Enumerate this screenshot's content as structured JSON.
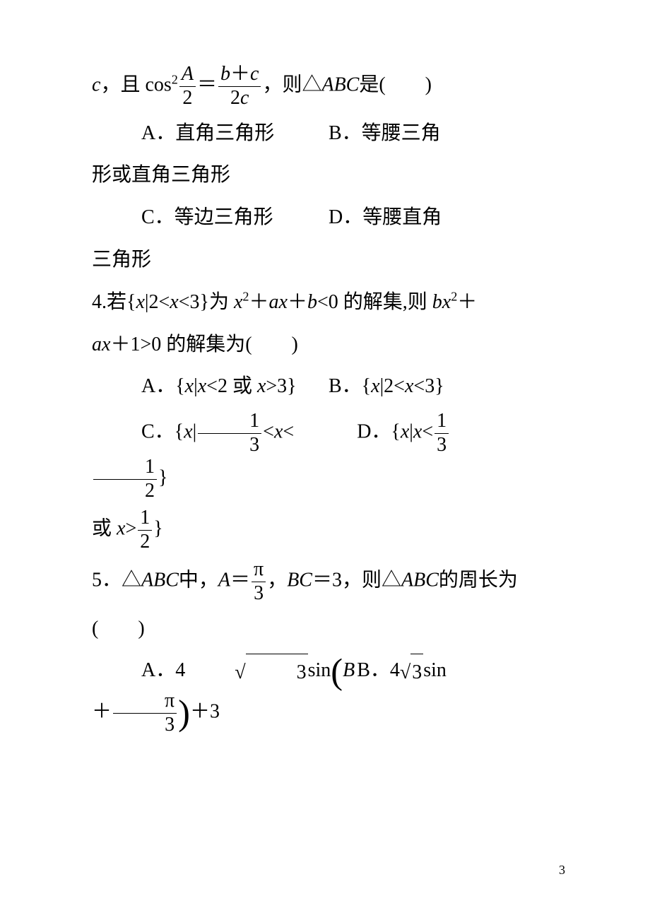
{
  "q3": {
    "stem_prefix": "c",
    "stem_mid1": "，且",
    "cos": "cos",
    "sq": "2",
    "A": "A",
    "two1": "2",
    "eq": "＝",
    "b": "b",
    "plus1": "＋",
    "c": "c",
    "two2": "2",
    "stem_mid2": "，则△",
    "ABC": "ABC",
    "stem_end": "是(　　)",
    "optA": "A．直角三角形",
    "optB": "B．等腰三角",
    "optB_cont": "形或直角三角形",
    "optC": "C．等边三角形",
    "optD": "D．等腰直角",
    "optD_cont": "三角形"
  },
  "q4": {
    "stem_p1": "4.若{",
    "x1": "x",
    "bar1": "|",
    "two_lt": "2<",
    "x2": "x",
    "lt3": "<3}为 ",
    "x3": "x",
    "sq1": "2",
    "plus1": "＋",
    "a1": "a",
    "x4": "x",
    "plus2": "＋",
    "b1": "b",
    "lt0": "<0 的解集,则 ",
    "b2": "b",
    "x5": "x",
    "sq2": "2",
    "plus3": "＋",
    "stem_p2_a": "a",
    "stem_p2_x": "x",
    "stem_p2": "＋1>0 的解集为(　　)",
    "optA_pre": "A．{",
    "optA_x1": "x",
    "optA_bar": "|",
    "optA_x2": "x",
    "optA_mid": "<2 或 ",
    "optA_x3": "x",
    "optA_end": ">3}",
    "optB_pre": "B．{",
    "optB_x1": "x",
    "optB_bar": "|",
    "optB_mid": "2<",
    "optB_x2": "x",
    "optB_end": "<3}",
    "optC_pre": "C．{",
    "optC_x1": "x",
    "optC_bar": "|",
    "optC_f1n": "1",
    "optC_f1d": "3",
    "optC_lt1": "<",
    "optC_x2": "x",
    "optC_lt2": "<",
    "optC_f2n": "1",
    "optC_f2d": "2",
    "optC_end": "}",
    "optD_pre": "D．{",
    "optD_x1": "x",
    "optD_bar": "|",
    "optD_x2": "x",
    "optD_lt": "<",
    "optD_f1n": "1",
    "optD_f1d": "3",
    "optD2_pre": "或 ",
    "optD2_x": "x",
    "optD2_gt": ">",
    "optD2_fn": "1",
    "optD2_fd": "2",
    "optD2_end": "}"
  },
  "q5": {
    "stem_p1": "5．△",
    "ABC1": "ABC",
    "mid1": "中，",
    "A": "A",
    "eq1": "＝",
    "pi1": "π",
    "three1": "3",
    "mid2": "，",
    "BC": "BC",
    "eq2": "＝3，则△",
    "ABC2": "ABC",
    "mid3": "的周长为",
    "paren": "(　　)",
    "optA_pre": "A．4",
    "optA_r3": "3",
    "optA_sin": "sin",
    "optA_B": "B",
    "optA_plus": "＋",
    "optA_pi": "π",
    "optA_3": "3",
    "optA_end": "＋3",
    "optB_pre": "B．4",
    "optB_r3": "3",
    "optB_sin": "sin"
  },
  "pagenum": "3",
  "colors": {
    "text": "#000000",
    "background": "#ffffff"
  },
  "font": {
    "family_cn": "SimSun",
    "family_math": "Times New Roman",
    "base_size_pt": 21
  }
}
